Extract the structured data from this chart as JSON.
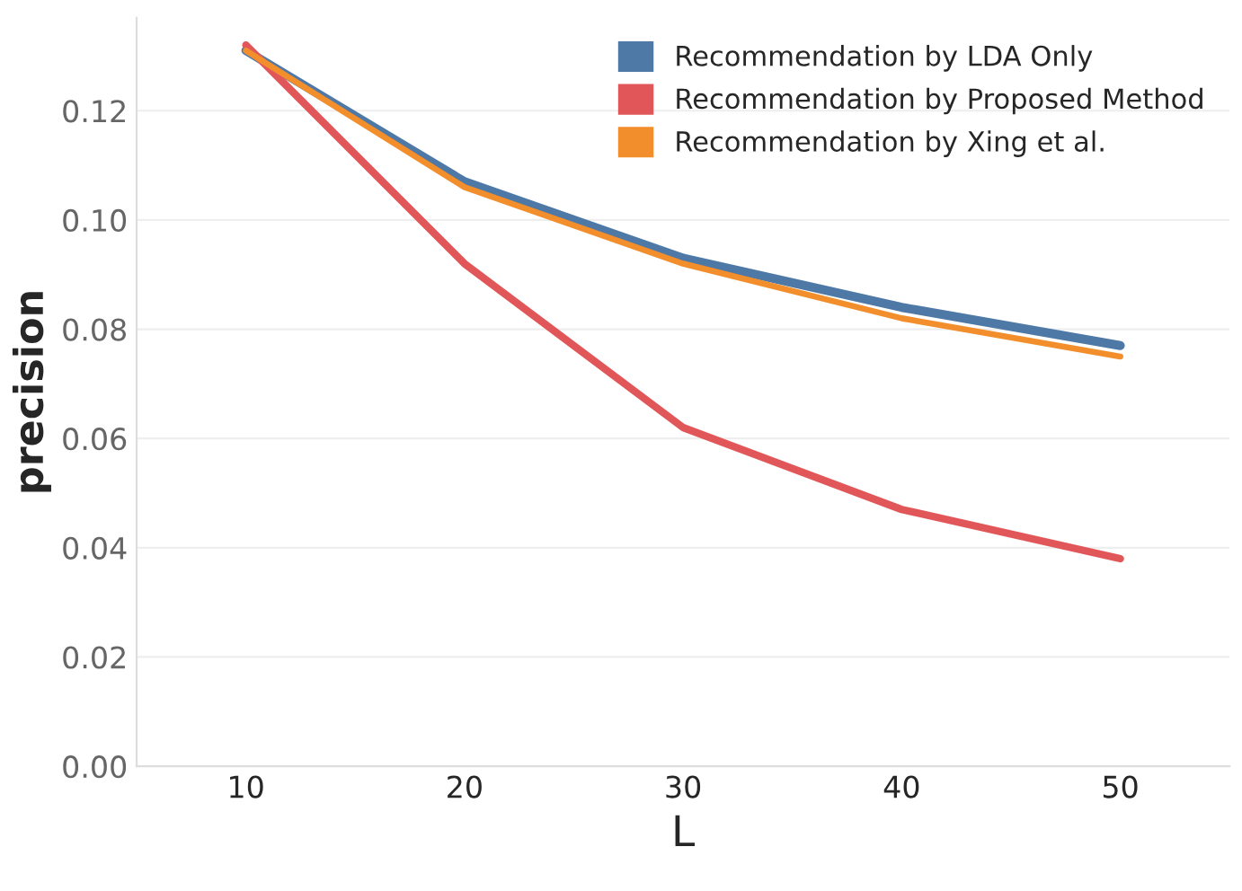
{
  "chart_data": {
    "type": "line",
    "xlabel": "L",
    "ylabel": "precision",
    "x": [
      10,
      20,
      30,
      40,
      50
    ],
    "series": [
      {
        "name": "Recommendation by LDA Only",
        "color": "#4e79a7",
        "values": [
          0.131,
          0.107,
          0.093,
          0.084,
          0.077
        ]
      },
      {
        "name": "Recommendation by Proposed Method",
        "color": "#e15759",
        "values": [
          0.132,
          0.092,
          0.062,
          0.047,
          0.038
        ]
      },
      {
        "name": "Recommendation by Xing et al.",
        "color": "#f28e2b",
        "values": [
          0.131,
          0.106,
          0.092,
          0.082,
          0.075
        ]
      }
    ],
    "xlim": [
      5,
      55
    ],
    "xticks": [
      10,
      20,
      30,
      40,
      50
    ],
    "ylim": [
      0,
      0.137
    ],
    "yticks": [
      {
        "value": 0,
        "label": "0.00"
      },
      {
        "value": 0.02,
        "label": "0.02"
      },
      {
        "value": 0.04,
        "label": "0.04"
      },
      {
        "value": 0.06,
        "label": "0.06"
      },
      {
        "value": 0.08,
        "label": "0.08"
      },
      {
        "value": 0.1,
        "label": "0.10"
      },
      {
        "value": 0.12,
        "label": "0.12"
      }
    ],
    "grid": "y",
    "legend": "top right",
    "marker": "none",
    "line_style": "solid"
  }
}
